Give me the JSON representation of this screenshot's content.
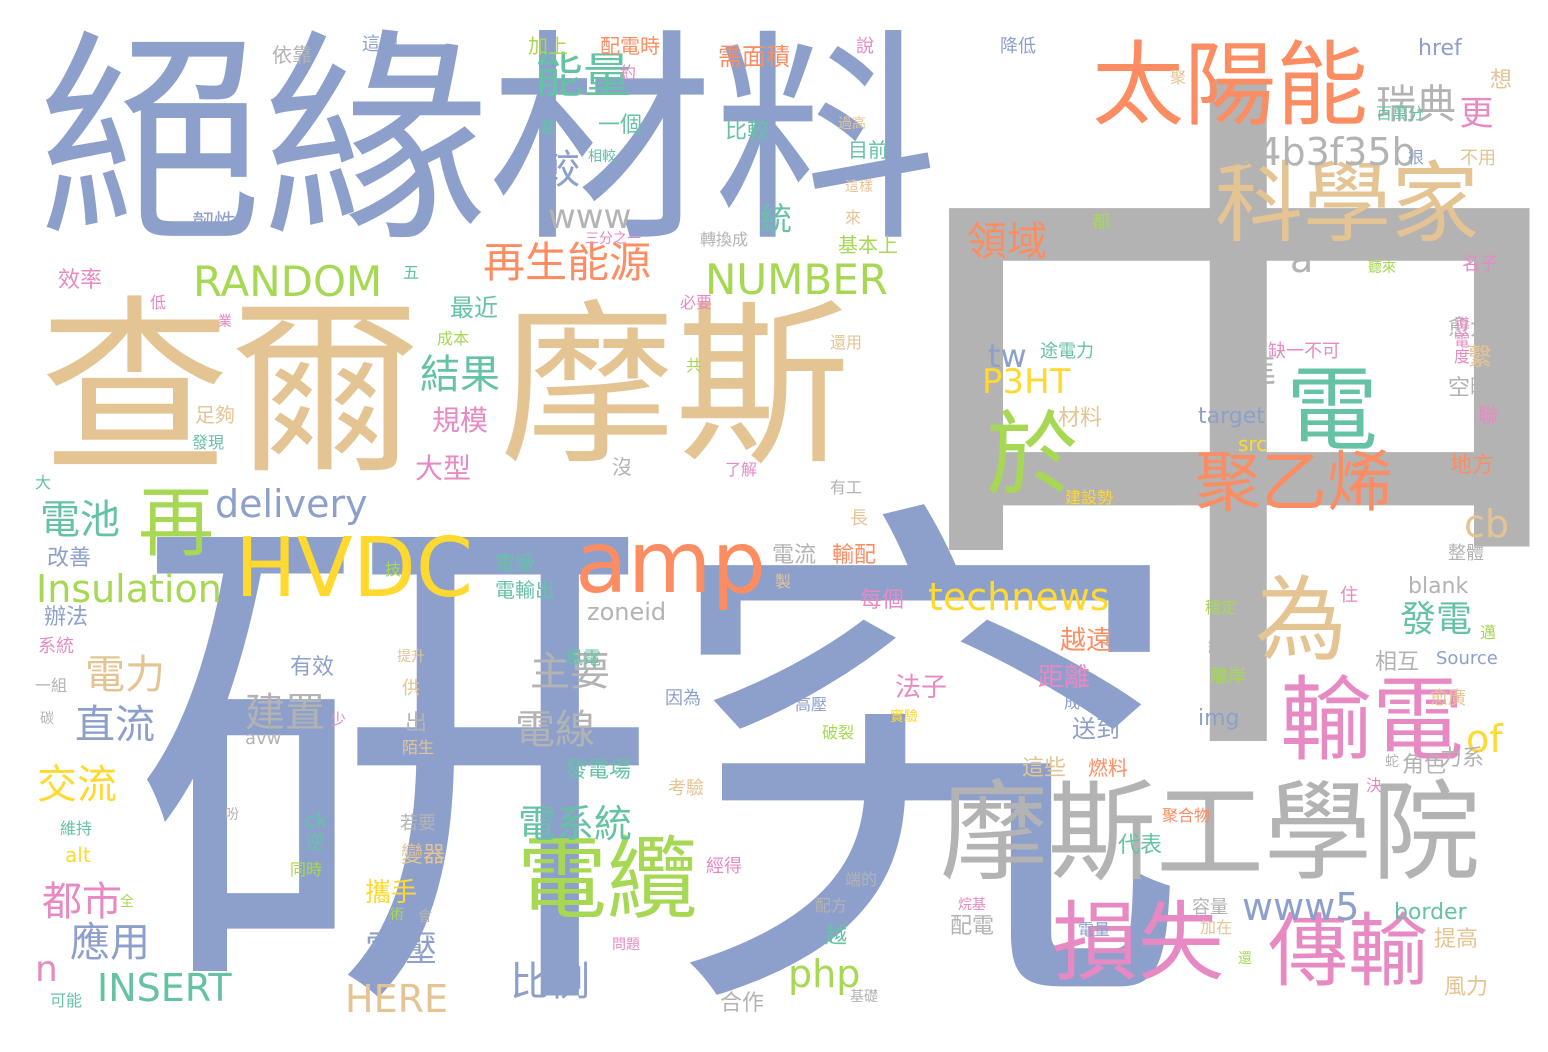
{
  "colors": {
    "blue": "#8DA0CB",
    "tan": "#E5C494",
    "grey": "#B3B3B3",
    "orange": "#FC8D62",
    "green": "#A6D854",
    "yellow": "#FFD92F",
    "teal": "#66C2A5",
    "pink": "#E78AC3"
  },
  "words": [
    {
      "text": "中",
      "color": "grey"
    },
    {
      "text": "研究",
      "color": "blue"
    },
    {
      "text": "絕緣材料",
      "color": "blue"
    },
    {
      "text": "查爾",
      "color": "tan"
    },
    {
      "text": "摩斯",
      "color": "tan"
    },
    {
      "text": "摩斯工學院",
      "color": "grey"
    },
    {
      "text": "太陽能",
      "color": "orange"
    },
    {
      "text": "科學家",
      "color": "tan"
    },
    {
      "text": "電",
      "color": "teal"
    },
    {
      "text": "於",
      "color": "green"
    },
    {
      "text": "聚乙烯",
      "color": "orange"
    },
    {
      "text": "輸電",
      "color": "pink"
    },
    {
      "text": "為",
      "color": "tan"
    },
    {
      "text": "損失",
      "color": "pink"
    },
    {
      "text": "傳輸",
      "color": "pink"
    },
    {
      "text": "電纜",
      "color": "green"
    },
    {
      "text": "HVDC",
      "color": "yellow"
    },
    {
      "text": "amp",
      "color": "orange"
    },
    {
      "text": "再",
      "color": "green"
    },
    {
      "text": "能量",
      "color": "teal"
    },
    {
      "text": "瑞典",
      "color": "grey"
    },
    {
      "text": "a4b3f35b",
      "color": "grey"
    },
    {
      "text": "再生能源",
      "color": "orange"
    },
    {
      "text": "RANDOM",
      "color": "green"
    },
    {
      "text": "NUMBER",
      "color": "green"
    },
    {
      "text": "delivery",
      "color": "blue"
    },
    {
      "text": "technews",
      "color": "yellow"
    },
    {
      "text": "Insulation",
      "color": "green"
    },
    {
      "text": "www5",
      "color": "blue"
    },
    {
      "text": "INSERT",
      "color": "teal"
    },
    {
      "text": "HERE",
      "color": "tan"
    },
    {
      "text": "php",
      "color": "green"
    },
    {
      "text": "P3HT",
      "color": "yellow"
    },
    {
      "text": "領域",
      "color": "orange"
    },
    {
      "text": "結果",
      "color": "teal"
    },
    {
      "text": "較",
      "color": "blue"
    },
    {
      "text": "www",
      "color": "grey"
    },
    {
      "text": "電線",
      "color": "grey"
    },
    {
      "text": "主要",
      "color": "grey"
    },
    {
      "text": "發電",
      "color": "teal"
    },
    {
      "text": "電力",
      "color": "tan"
    },
    {
      "text": "直流",
      "color": "blue"
    },
    {
      "text": "建置",
      "color": "grey"
    },
    {
      "text": "交流",
      "color": "yellow"
    },
    {
      "text": "電系統",
      "color": "teal"
    },
    {
      "text": "都市",
      "color": "pink"
    },
    {
      "text": "應用",
      "color": "blue"
    },
    {
      "text": "電壓",
      "color": "blue"
    },
    {
      "text": "比例",
      "color": "blue"
    },
    {
      "text": "電池",
      "color": "teal"
    },
    {
      "text": "cb",
      "color": "tan"
    },
    {
      "text": "tw",
      "color": "blue"
    },
    {
      "text": "of",
      "color": "yellow"
    },
    {
      "text": "a",
      "color": "grey"
    },
    {
      "text": "更",
      "color": "pink"
    },
    {
      "text": "進",
      "color": "grey"
    },
    {
      "text": "n",
      "color": "pink"
    },
    {
      "text": "大型",
      "color": "pink"
    },
    {
      "text": "規模",
      "color": "pink"
    },
    {
      "text": "最近",
      "color": "teal"
    },
    {
      "text": "一個",
      "color": "teal"
    },
    {
      "text": "比較",
      "color": "teal"
    },
    {
      "text": "目前",
      "color": "teal"
    },
    {
      "text": "統",
      "color": "teal"
    },
    {
      "text": "基本上",
      "color": "green"
    },
    {
      "text": "配電時",
      "color": "orange"
    },
    {
      "text": "加上",
      "color": "green"
    },
    {
      "text": "需面積",
      "color": "orange"
    },
    {
      "text": "依靠",
      "color": "grey"
    },
    {
      "text": "這個",
      "color": "blue"
    },
    {
      "text": "說",
      "color": "pink"
    },
    {
      "text": "降低",
      "color": "blue"
    },
    {
      "text": "href",
      "color": "blue"
    },
    {
      "text": "想",
      "color": "tan"
    },
    {
      "text": "百萬分",
      "color": "teal"
    },
    {
      "text": "不用",
      "color": "tan"
    },
    {
      "text": "名子",
      "color": "pink"
    },
    {
      "text": "愈大",
      "color": "grey"
    },
    {
      "text": "導電度",
      "color": "pink"
    },
    {
      "text": "繫",
      "color": "tan"
    },
    {
      "text": "空曠",
      "color": "grey"
    },
    {
      "text": "聯",
      "color": "pink"
    },
    {
      "text": "地方",
      "color": "orange"
    },
    {
      "text": "效率",
      "color": "pink"
    },
    {
      "text": "韌性",
      "color": "blue"
    },
    {
      "text": "成本",
      "color": "green"
    },
    {
      "text": "足夠",
      "color": "tan"
    },
    {
      "text": "發現",
      "color": "teal"
    },
    {
      "text": "電廠",
      "color": "teal"
    },
    {
      "text": "電輸出",
      "color": "teal"
    },
    {
      "text": "電流",
      "color": "grey"
    },
    {
      "text": "輸配",
      "color": "orange"
    },
    {
      "text": "每個",
      "color": "pink"
    },
    {
      "text": "zoneid",
      "color": "grey"
    },
    {
      "text": "風電",
      "color": "teal"
    },
    {
      "text": "辦法",
      "color": "blue"
    },
    {
      "text": "改善",
      "color": "blue"
    },
    {
      "text": "系統",
      "color": "pink"
    },
    {
      "text": "一組",
      "color": "grey"
    },
    {
      "text": "有效",
      "color": "blue"
    },
    {
      "text": "法子",
      "color": "pink"
    },
    {
      "text": "距離",
      "color": "pink"
    },
    {
      "text": "越遠",
      "color": "orange"
    },
    {
      "text": "送到",
      "color": "blue"
    },
    {
      "text": "角色",
      "color": "grey"
    },
    {
      "text": "這些",
      "color": "tan"
    },
    {
      "text": "燃料",
      "color": "orange"
    },
    {
      "text": "不過",
      "color": "blue"
    },
    {
      "text": "發電場",
      "color": "teal"
    },
    {
      "text": "考驗",
      "color": "tan"
    },
    {
      "text": "材料",
      "color": "tan"
    },
    {
      "text": "途電力",
      "color": "teal"
    },
    {
      "text": "缺一不可",
      "color": "pink"
    },
    {
      "text": "target",
      "color": "blue"
    },
    {
      "text": "src",
      "color": "yellow"
    },
    {
      "text": "傳",
      "color": "grey"
    },
    {
      "text": "img",
      "color": "blue"
    },
    {
      "text": "blank",
      "color": "grey"
    },
    {
      "text": "Source",
      "color": "blue"
    },
    {
      "text": "border",
      "color": "teal"
    },
    {
      "text": "alt",
      "color": "yellow"
    },
    {
      "text": "ck",
      "color": "teal"
    },
    {
      "text": "avw",
      "color": "grey"
    },
    {
      "text": "代表",
      "color": "teal"
    },
    {
      "text": "攜手",
      "color": "yellow"
    },
    {
      "text": "越",
      "color": "teal"
    },
    {
      "text": "配電",
      "color": "grey"
    },
    {
      "text": "容量",
      "color": "grey"
    },
    {
      "text": "提高",
      "color": "tan"
    },
    {
      "text": "風力",
      "color": "tan"
    },
    {
      "text": "合作",
      "color": "grey"
    },
    {
      "text": "可能",
      "color": "teal"
    },
    {
      "text": "維持",
      "color": "teal"
    },
    {
      "text": "若要",
      "color": "grey"
    },
    {
      "text": "同時",
      "color": "green"
    },
    {
      "text": "配方",
      "color": "grey"
    },
    {
      "text": "端的",
      "color": "grey"
    },
    {
      "text": "成本低",
      "color": "blue"
    },
    {
      "text": "高壓",
      "color": "blue"
    },
    {
      "text": "穩定",
      "color": "green"
    },
    {
      "text": "經過",
      "color": "grey"
    },
    {
      "text": "離岸",
      "color": "green"
    },
    {
      "text": "相互",
      "color": "grey"
    },
    {
      "text": "愈廣",
      "color": "tan"
    },
    {
      "text": "整體",
      "color": "grey"
    },
    {
      "text": "力系",
      "color": "grey"
    },
    {
      "text": "出",
      "color": "grey"
    },
    {
      "text": "供",
      "color": "tan"
    },
    {
      "text": "陌生",
      "color": "tan"
    },
    {
      "text": "因為",
      "color": "blue"
    },
    {
      "text": "實驗",
      "color": "yellow"
    },
    {
      "text": "破裂",
      "color": "green"
    },
    {
      "text": "聚合物",
      "color": "orange"
    },
    {
      "text": "建設勢",
      "color": "yellow"
    },
    {
      "text": "有工",
      "color": "grey"
    },
    {
      "text": "長",
      "color": "tan"
    },
    {
      "text": "了解",
      "color": "pink"
    },
    {
      "text": "沒",
      "color": "grey"
    },
    {
      "text": "提升",
      "color": "tan"
    },
    {
      "text": "少",
      "color": "pink"
    },
    {
      "text": "碳",
      "color": "grey"
    },
    {
      "text": "大",
      "color": "teal"
    },
    {
      "text": "低",
      "color": "pink"
    },
    {
      "text": "業",
      "color": "pink"
    },
    {
      "text": "五",
      "color": "teal"
    },
    {
      "text": "必要",
      "color": "pink"
    },
    {
      "text": "轉換成",
      "color": "grey"
    },
    {
      "text": "三分之一",
      "color": "pink"
    },
    {
      "text": "來",
      "color": "tan"
    },
    {
      "text": "這樣",
      "color": "tan"
    },
    {
      "text": "都",
      "color": "green"
    },
    {
      "text": "過高",
      "color": "tan"
    },
    {
      "text": "聽來",
      "color": "green"
    },
    {
      "text": "很",
      "color": "blue"
    },
    {
      "text": "聚",
      "color": "tan"
    },
    {
      "text": "約",
      "color": "pink"
    },
    {
      "text": "基",
      "color": "teal"
    },
    {
      "text": "相較",
      "color": "teal"
    },
    {
      "text": "還用",
      "color": "tan"
    },
    {
      "text": "共",
      "color": "green"
    },
    {
      "text": "技",
      "color": "green"
    },
    {
      "text": "製",
      "color": "tan"
    },
    {
      "text": "電量",
      "color": "blue"
    },
    {
      "text": "內",
      "color": "blue"
    },
    {
      "text": "逆",
      "color": "teal"
    },
    {
      "text": "變器",
      "color": "tan"
    },
    {
      "text": "經得",
      "color": "pink"
    },
    {
      "text": "全",
      "color": "green"
    },
    {
      "text": "術",
      "color": "green"
    },
    {
      "text": "會",
      "color": "grey"
    },
    {
      "text": "問題",
      "color": "pink"
    },
    {
      "text": "基礎",
      "color": "grey"
    },
    {
      "text": "烷基",
      "color": "pink"
    },
    {
      "text": "加在",
      "color": "tan"
    },
    {
      "text": "還",
      "color": "green"
    },
    {
      "text": "住",
      "color": "pink"
    },
    {
      "text": "邁",
      "color": "green"
    },
    {
      "text": "決",
      "color": "pink"
    },
    {
      "text": "蛇",
      "color": "grey"
    },
    {
      "text": "吩",
      "color": "grey"
    }
  ]
}
